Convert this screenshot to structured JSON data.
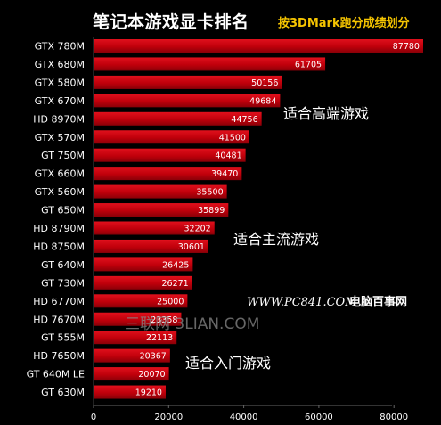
{
  "header": {
    "title": "笔记本游戏显卡排名",
    "subtitle": "按3DMark跑分成绩划分"
  },
  "chart_data": {
    "type": "bar",
    "orientation": "horizontal",
    "categories": [
      "GTX 780M",
      "GTX 680M",
      "GTX 580M",
      "GTX 670M",
      "HD 8970M",
      "GTX 570M",
      "GT 750M",
      "GTX 660M",
      "GTX 560M",
      "GT 650M",
      "HD 8790M",
      "HD 8750M",
      "GT 640M",
      "GT 730M",
      "HD 6770M",
      "HD 7670M",
      "GT 555M",
      "HD 7650M",
      "GT 640M LE",
      "GT 630M"
    ],
    "values": [
      87780,
      61705,
      50156,
      49684,
      44756,
      41500,
      40481,
      39470,
      35500,
      35899,
      32202,
      30601,
      26425,
      26271,
      25000,
      23358,
      22113,
      20367,
      20070,
      19210
    ],
    "xlim": [
      0,
      95000
    ],
    "xticks": [
      0,
      20000,
      40000,
      60000,
      80000
    ],
    "grid": false,
    "bar_color": "#c0000b",
    "annotations": [
      {
        "text": "适合高端游戏",
        "near_category": "HD 8970M"
      },
      {
        "text": "适合主流游戏",
        "near_category": "HD 8750M"
      },
      {
        "text": "适合入门游戏",
        "near_category": "GT 640M LE"
      }
    ]
  },
  "watermarks": {
    "site_url": "WWW.PC841.COM",
    "site_name": "电脑百事网",
    "secondary": "三联网 3LIAN.COM"
  }
}
